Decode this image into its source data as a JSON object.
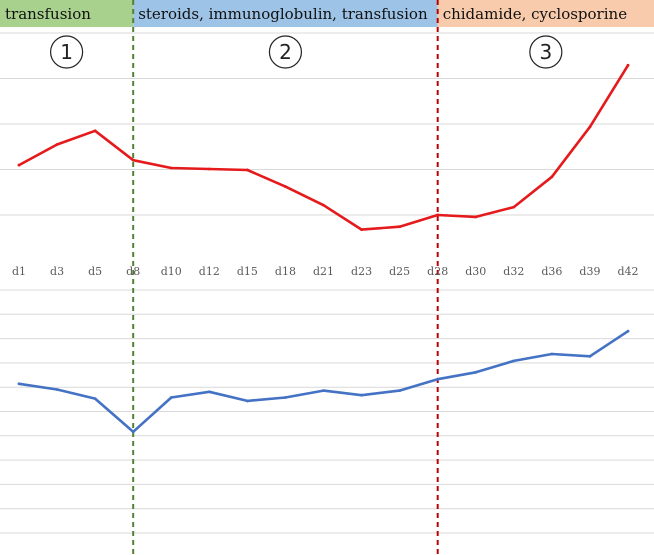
{
  "chart_data": {
    "type": "line",
    "phases": [
      {
        "label": "transfusion",
        "color": "#a9d18e",
        "from": "d1",
        "to": "d8",
        "number": "1"
      },
      {
        "label": "steroids, immunoglobulin, transfusion",
        "color": "#9dc3e6",
        "from": "d8",
        "to": "d28",
        "number": "2"
      },
      {
        "label": "chidamide, cyclosporine",
        "color": "#f8cbad",
        "from": "d28",
        "to": "d42",
        "number": "3"
      }
    ],
    "phase_dividers": [
      {
        "after": "d8",
        "color": "#548235"
      },
      {
        "after": "d28",
        "color": "#c00000"
      }
    ],
    "categories": [
      "d1",
      "d3",
      "d5",
      "d8",
      "d10",
      "d12",
      "d15",
      "d18",
      "d21",
      "d23",
      "d25",
      "d28",
      "d30",
      "d32",
      "d36",
      "d39",
      "d42"
    ],
    "series": [
      {
        "color": "#e41a1c",
        "values": [
          0.55,
          0.76,
          0.9,
          0.6,
          0.52,
          0.51,
          0.5,
          0.33,
          0.14,
          -0.11,
          -0.08,
          0.04,
          0.02,
          0.12,
          0.43,
          0.94,
          1.57
        ],
        "ylim": [
          -0.4,
          1.9
        ],
        "grid": true
      },
      {
        "color": "#4472c4",
        "values": [
          0.38,
          0.33,
          0.25,
          -0.04,
          0.26,
          0.31,
          0.23,
          0.26,
          0.32,
          0.28,
          0.32,
          0.42,
          0.48,
          0.58,
          0.64,
          0.62,
          0.84
        ],
        "ylim": [
          -1.1,
          1.2
        ],
        "grid": true
      }
    ]
  }
}
